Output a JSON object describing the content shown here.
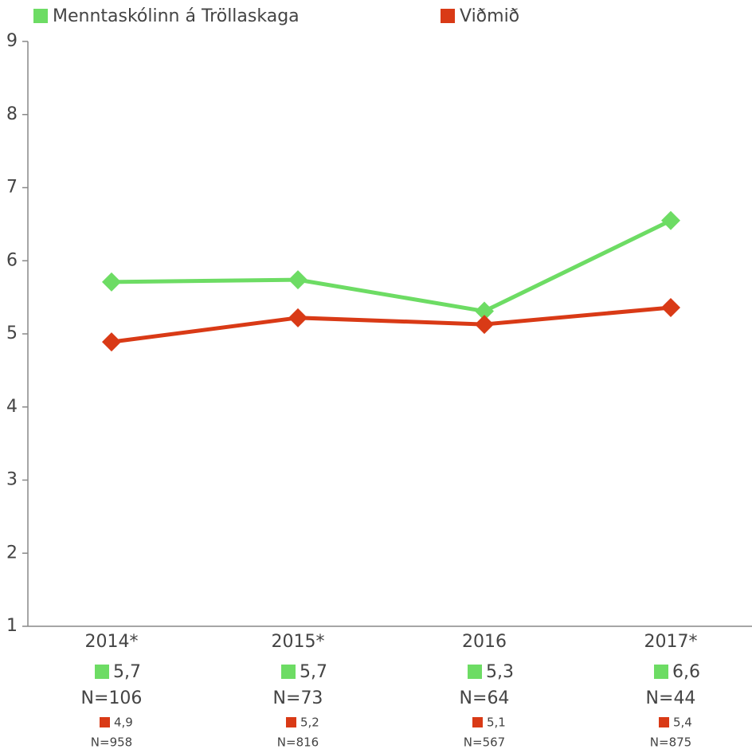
{
  "chart_data": {
    "type": "line",
    "categories": [
      "2014*",
      "2015*",
      "2016",
      "2017*"
    ],
    "series": [
      {
        "name": "Menntaskólinn á Tröllaskaga",
        "color": "#6ddc64",
        "values": [
          5.71,
          5.74,
          5.31,
          6.55
        ],
        "value_labels": [
          "5,7",
          "5,7",
          "5,3",
          "6,6"
        ],
        "n_labels": [
          "N=106",
          "N=73",
          "N=64",
          "N=44"
        ]
      },
      {
        "name": "Viðmið",
        "color": "#d93a16",
        "values": [
          4.89,
          5.22,
          5.13,
          5.36
        ],
        "value_labels": [
          "4,9",
          "5,2",
          "5,1",
          "5,4"
        ],
        "n_labels": [
          "N=958",
          "N=816",
          "N=567",
          "N=875"
        ]
      }
    ],
    "ylim": [
      1,
      9
    ],
    "yticks": [
      1,
      2,
      3,
      4,
      5,
      6,
      7,
      8,
      9
    ]
  }
}
